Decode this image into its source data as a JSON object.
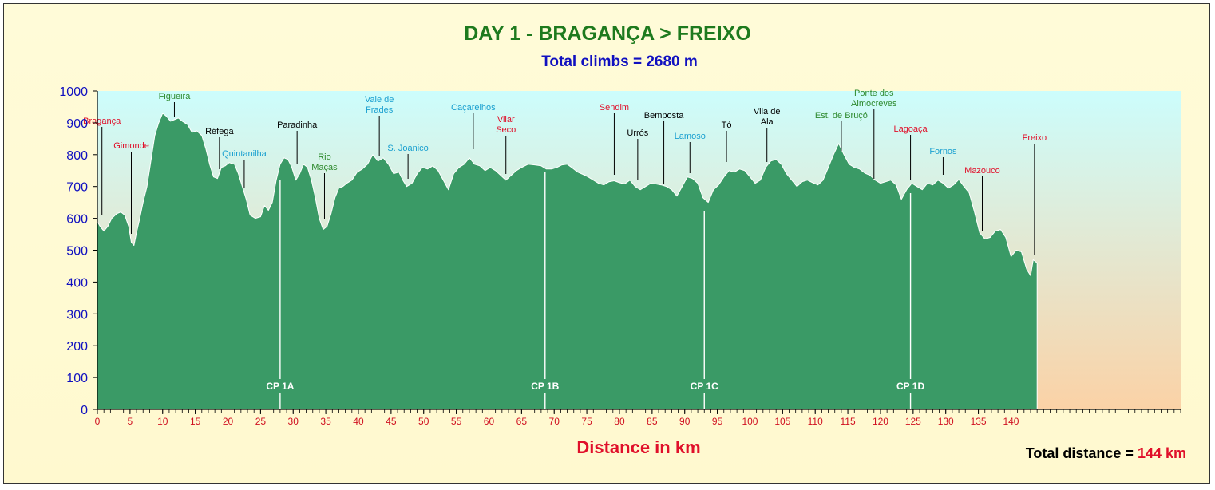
{
  "chart_data": {
    "type": "area",
    "title": "DAY 1 - BRAGANÇA > FREIXO",
    "subtitle": "Total climbs = 2680 m",
    "xlabel": "Distance in km",
    "ylabel": "",
    "xlim": [
      0,
      166
    ],
    "ylim": [
      0,
      1000
    ],
    "ymajor": 100,
    "xmajor": 5,
    "xticks": [
      "0",
      "5",
      "10",
      "15",
      "20",
      "25",
      "30",
      "35",
      "40",
      "45",
      "50",
      "55",
      "60",
      "65",
      "70",
      "75",
      "80",
      "85",
      "90",
      "95",
      "100",
      "105",
      "110",
      "115",
      "120",
      "125",
      "130",
      "135",
      "140"
    ],
    "yticks": [
      "0",
      "100",
      "200",
      "300",
      "400",
      "500",
      "600",
      "700",
      "800",
      "900",
      "1000"
    ],
    "total_distance": {
      "label": "Total distance =",
      "value": "144 km"
    },
    "colors": {
      "area": "#3a9a66",
      "sky_top": "#ccfdfc",
      "sky_bottom": "#fbd2a6",
      "outline": "#ffffff",
      "axis_text": "#1010c0",
      "tick_text": "#d01020"
    },
    "profile": [
      [
        0,
        590
      ],
      [
        0.4,
        575
      ],
      [
        1,
        560
      ],
      [
        1.6,
        575
      ],
      [
        2.2,
        600
      ],
      [
        3,
        615
      ],
      [
        3.6,
        620
      ],
      [
        4.2,
        610
      ],
      [
        4.8,
        575
      ],
      [
        5.2,
        525
      ],
      [
        5.6,
        515
      ],
      [
        6,
        555
      ],
      [
        6.5,
        600
      ],
      [
        7,
        650
      ],
      [
        7.6,
        700
      ],
      [
        8.2,
        780
      ],
      [
        8.8,
        860
      ],
      [
        9.4,
        900
      ],
      [
        10,
        930
      ],
      [
        10.6,
        920
      ],
      [
        11.2,
        905
      ],
      [
        11.8,
        910
      ],
      [
        12.4,
        915
      ],
      [
        13,
        905
      ],
      [
        13.8,
        895
      ],
      [
        14.5,
        870
      ],
      [
        15.2,
        875
      ],
      [
        16,
        860
      ],
      [
        16.6,
        820
      ],
      [
        17.2,
        770
      ],
      [
        17.8,
        730
      ],
      [
        18.4,
        725
      ],
      [
        19,
        760
      ],
      [
        19.6,
        765
      ],
      [
        20.2,
        775
      ],
      [
        21,
        770
      ],
      [
        21.6,
        740
      ],
      [
        22.2,
        700
      ],
      [
        22.8,
        660
      ],
      [
        23.4,
        610
      ],
      [
        24.2,
        600
      ],
      [
        25,
        605
      ],
      [
        25.6,
        640
      ],
      [
        26.2,
        625
      ],
      [
        26.8,
        650
      ],
      [
        27.4,
        720
      ],
      [
        28,
        770
      ],
      [
        28.6,
        790
      ],
      [
        29.2,
        785
      ],
      [
        29.8,
        760
      ],
      [
        30.4,
        720
      ],
      [
        31,
        740
      ],
      [
        31.6,
        770
      ],
      [
        32.2,
        760
      ],
      [
        32.8,
        720
      ],
      [
        33.4,
        665
      ],
      [
        34,
        600
      ],
      [
        34.6,
        565
      ],
      [
        35.2,
        575
      ],
      [
        35.8,
        615
      ],
      [
        36.4,
        665
      ],
      [
        37,
        695
      ],
      [
        37.6,
        700
      ],
      [
        38.2,
        710
      ],
      [
        39,
        720
      ],
      [
        39.8,
        745
      ],
      [
        40.6,
        755
      ],
      [
        41.4,
        770
      ],
      [
        42.2,
        800
      ],
      [
        43,
        780
      ],
      [
        43.8,
        790
      ],
      [
        44.6,
        770
      ],
      [
        45.4,
        740
      ],
      [
        46.2,
        745
      ],
      [
        46.8,
        720
      ],
      [
        47.4,
        700
      ],
      [
        48.2,
        710
      ],
      [
        49,
        740
      ],
      [
        49.8,
        760
      ],
      [
        50.6,
        755
      ],
      [
        51.4,
        765
      ],
      [
        52.2,
        750
      ],
      [
        53,
        720
      ],
      [
        53.8,
        690
      ],
      [
        54.6,
        740
      ],
      [
        55.4,
        760
      ],
      [
        56.2,
        770
      ],
      [
        57,
        790
      ],
      [
        57.8,
        770
      ],
      [
        58.6,
        765
      ],
      [
        59.4,
        750
      ],
      [
        60.2,
        760
      ],
      [
        61,
        750
      ],
      [
        61.8,
        735
      ],
      [
        62.6,
        720
      ],
      [
        63.4,
        735
      ],
      [
        64.2,
        750
      ],
      [
        65,
        760
      ],
      [
        66,
        770
      ],
      [
        67,
        768
      ],
      [
        68,
        765
      ],
      [
        68.8,
        755
      ],
      [
        69.6,
        755
      ],
      [
        70.4,
        760
      ],
      [
        71.2,
        768
      ],
      [
        72,
        770
      ],
      [
        72.8,
        758
      ],
      [
        73.6,
        745
      ],
      [
        74.4,
        738
      ],
      [
        75.2,
        730
      ],
      [
        76,
        720
      ],
      [
        76.8,
        710
      ],
      [
        77.6,
        705
      ],
      [
        78.4,
        715
      ],
      [
        79.2,
        718
      ],
      [
        80,
        712
      ],
      [
        80.8,
        708
      ],
      [
        81.6,
        720
      ],
      [
        82.4,
        700
      ],
      [
        83.2,
        690
      ],
      [
        84,
        700
      ],
      [
        84.8,
        710
      ],
      [
        85.6,
        708
      ],
      [
        86.4,
        705
      ],
      [
        87.2,
        700
      ],
      [
        88,
        690
      ],
      [
        88.8,
        670
      ],
      [
        89.6,
        700
      ],
      [
        90.4,
        730
      ],
      [
        91.2,
        725
      ],
      [
        92,
        710
      ],
      [
        92.8,
        665
      ],
      [
        93.6,
        650
      ],
      [
        94.4,
        690
      ],
      [
        95.2,
        705
      ],
      [
        96,
        730
      ],
      [
        96.8,
        750
      ],
      [
        97.6,
        745
      ],
      [
        98.4,
        755
      ],
      [
        99.2,
        750
      ],
      [
        100,
        730
      ],
      [
        100.8,
        710
      ],
      [
        101.6,
        720
      ],
      [
        102.4,
        760
      ],
      [
        103.2,
        780
      ],
      [
        104,
        785
      ],
      [
        104.8,
        770
      ],
      [
        105.6,
        740
      ],
      [
        106.4,
        720
      ],
      [
        107.2,
        700
      ],
      [
        108,
        715
      ],
      [
        108.8,
        720
      ],
      [
        109.6,
        712
      ],
      [
        110.4,
        705
      ],
      [
        111.2,
        720
      ],
      [
        112,
        760
      ],
      [
        112.8,
        800
      ],
      [
        113.6,
        835
      ],
      [
        114.4,
        800
      ],
      [
        115.2,
        770
      ],
      [
        116,
        760
      ],
      [
        116.8,
        755
      ],
      [
        117.6,
        742
      ],
      [
        118.4,
        735
      ],
      [
        119.2,
        720
      ],
      [
        120,
        710
      ],
      [
        120.8,
        715
      ],
      [
        121.6,
        720
      ],
      [
        122.4,
        705
      ],
      [
        123.2,
        660
      ],
      [
        124,
        690
      ],
      [
        124.8,
        710
      ],
      [
        125.6,
        700
      ],
      [
        126.4,
        690
      ],
      [
        127.2,
        710
      ],
      [
        128,
        705
      ],
      [
        128.8,
        720
      ],
      [
        129.6,
        710
      ],
      [
        130.4,
        695
      ],
      [
        131.2,
        705
      ],
      [
        132,
        722
      ],
      [
        132.8,
        700
      ],
      [
        133.6,
        680
      ],
      [
        134.4,
        620
      ],
      [
        135.2,
        555
      ],
      [
        136,
        535
      ],
      [
        136.8,
        540
      ],
      [
        137.6,
        560
      ],
      [
        138.4,
        565
      ],
      [
        139.2,
        540
      ],
      [
        140,
        480
      ],
      [
        140.8,
        500
      ],
      [
        141.6,
        495
      ],
      [
        142.4,
        440
      ],
      [
        143,
        420
      ],
      [
        143.4,
        470
      ],
      [
        144,
        460
      ],
      [
        144,
        0
      ]
    ],
    "places": [
      {
        "name": "Bragança",
        "lines": [
          "Bragança"
        ],
        "km": 0.7,
        "top": 145,
        "color": "#e0102a",
        "drop": 270
      },
      {
        "name": "Gimonde",
        "lines": [
          "Gimonde"
        ],
        "km": 5.2,
        "top": 176,
        "color": "#e0102a",
        "drop": 293
      },
      {
        "name": "Figueira",
        "lines": [
          "Figueira"
        ],
        "km": 11.8,
        "top": 114,
        "color": "#2e8a2e",
        "drop": 147
      },
      {
        "name": "Réfega",
        "lines": [
          "Réfega"
        ],
        "km": 18.7,
        "top": 158,
        "color": "#000000",
        "drop": 212
      },
      {
        "name": "Quintanilha",
        "lines": [
          "Quintanilha"
        ],
        "km": 22.5,
        "top": 186,
        "color": "#1aa0d0",
        "drop": 236
      },
      {
        "name": "Paradinha",
        "lines": [
          "Paradinha"
        ],
        "km": 30.6,
        "top": 150,
        "color": "#000000",
        "drop": 205
      },
      {
        "name": "Rio Maças",
        "lines": [
          "Rio",
          "Maças"
        ],
        "km": 34.8,
        "top": 190,
        "color": "#2e8a2e",
        "drop": 275
      },
      {
        "name": "Vale de Frades",
        "lines": [
          "Vale de",
          "Frades"
        ],
        "km": 43.2,
        "top": 118,
        "color": "#1aa0d0",
        "drop": 196
      },
      {
        "name": "S. Joanico",
        "lines": [
          "S. Joanico"
        ],
        "km": 47.6,
        "top": 179,
        "color": "#1aa0d0",
        "drop": 224
      },
      {
        "name": "Caçarelhos",
        "lines": [
          "Caçarelhos"
        ],
        "km": 57.6,
        "top": 128,
        "color": "#1aa0d0",
        "drop": 187
      },
      {
        "name": "Vilar Seco",
        "lines": [
          "Vilar",
          "Seco"
        ],
        "km": 62.6,
        "top": 143,
        "color": "#e0102a",
        "drop": 218
      },
      {
        "name": "Sendim",
        "lines": [
          "Sendim"
        ],
        "km": 79.2,
        "top": 128,
        "color": "#e0102a",
        "drop": 219
      },
      {
        "name": "Urrós",
        "lines": [
          "Urrós"
        ],
        "km": 82.8,
        "top": 160,
        "color": "#000000",
        "drop": 226
      },
      {
        "name": "Bemposta",
        "lines": [
          "Bemposta"
        ],
        "km": 86.8,
        "top": 138,
        "color": "#000000",
        "drop": 230
      },
      {
        "name": "Lamoso",
        "lines": [
          "Lamoso"
        ],
        "km": 90.8,
        "top": 164,
        "color": "#1aa0d0",
        "drop": 217
      },
      {
        "name": "Tó",
        "lines": [
          "Tó"
        ],
        "km": 96.4,
        "top": 150,
        "color": "#000000",
        "drop": 203
      },
      {
        "name": "Vila de Ala",
        "lines": [
          "Vila de",
          "Ala"
        ],
        "km": 102.6,
        "top": 133,
        "color": "#000000",
        "drop": 203
      },
      {
        "name": "Est. de Bruçó",
        "lines": [
          "Est. de Bruçó"
        ],
        "km": 114,
        "top": 138,
        "color": "#2e8a2e",
        "drop": 189
      },
      {
        "name": "Ponte dos Almocreves",
        "lines": [
          "Ponte dos",
          "Almocreves"
        ],
        "km": 119,
        "top": 110,
        "color": "#2e8a2e",
        "drop": 224
      },
      {
        "name": "Lagoaça",
        "lines": [
          "Lagoaça"
        ],
        "km": 124.6,
        "top": 155,
        "color": "#e0102a",
        "drop": 225
      },
      {
        "name": "Fornos",
        "lines": [
          "Fornos"
        ],
        "km": 129.6,
        "top": 183,
        "color": "#1aa0d0",
        "drop": 219
      },
      {
        "name": "Mazouco",
        "lines": [
          "Mazouco"
        ],
        "km": 135.6,
        "top": 207,
        "color": "#e0102a",
        "drop": 290
      },
      {
        "name": "Freixo",
        "lines": [
          "Freixo"
        ],
        "km": 143.6,
        "top": 166,
        "color": "#e0102a",
        "drop": 320
      }
    ],
    "checkpoints": [
      {
        "label": "CP 1A",
        "km": 28
      },
      {
        "label": "CP 1B",
        "km": 68.6
      },
      {
        "label": "CP 1C",
        "km": 93
      },
      {
        "label": "CP 1D",
        "km": 124.6
      }
    ]
  }
}
